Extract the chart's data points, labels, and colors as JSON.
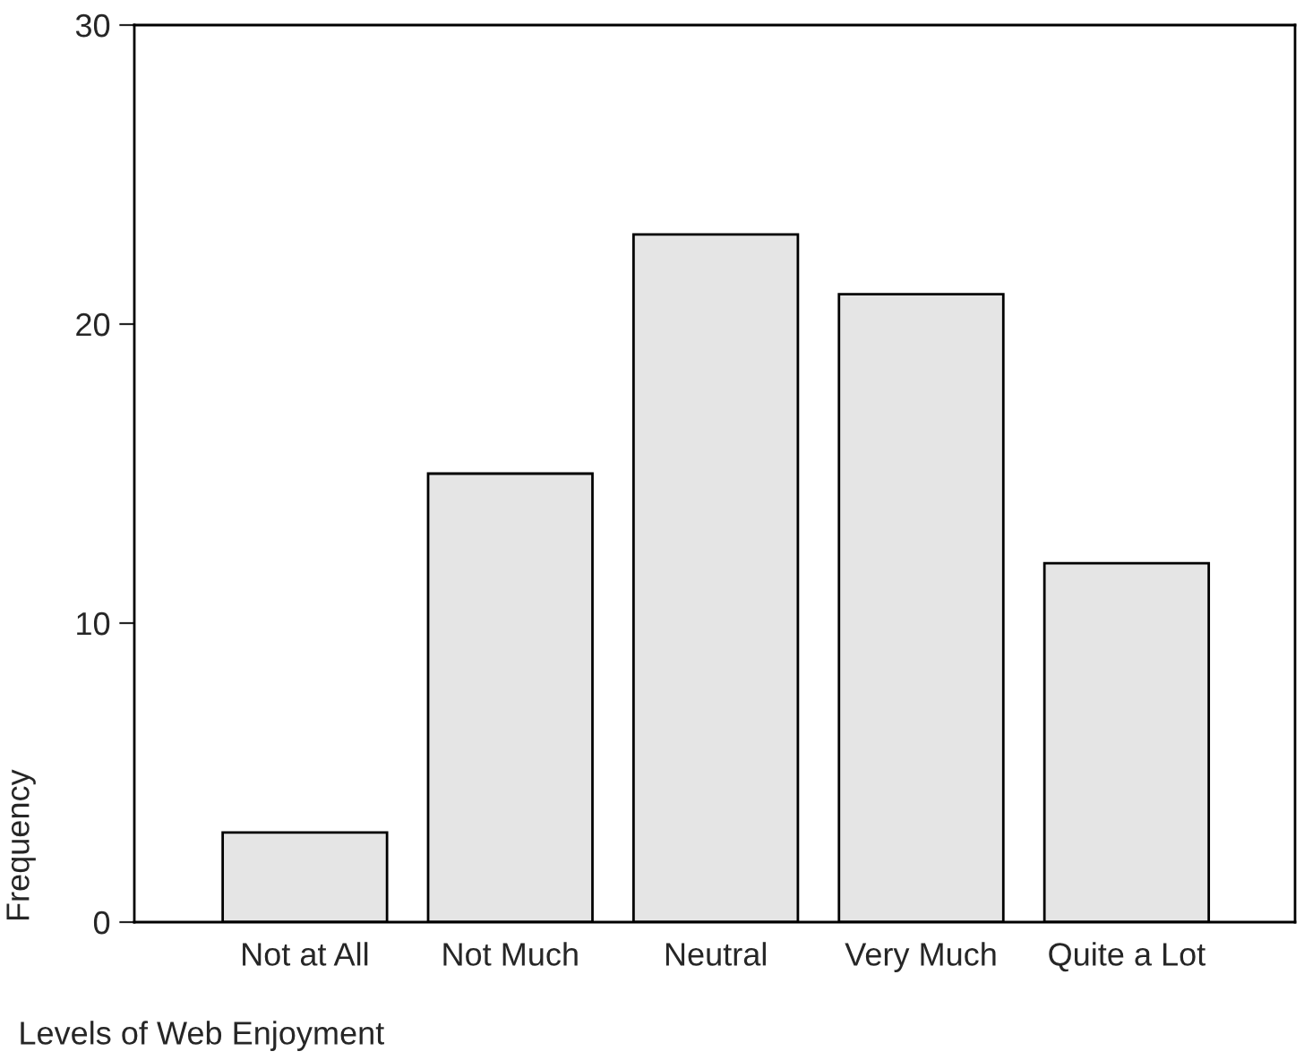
{
  "chart_data": {
    "type": "bar",
    "xlabel": "Levels of Web Enjoyment",
    "ylabel": "Frequency",
    "categories": [
      "Not at All",
      "Not Much",
      "Neutral",
      "Very Much",
      "Quite a Lot"
    ],
    "values": [
      3,
      15,
      23,
      21,
      12
    ],
    "color": "#e5e5e5",
    "ylim": [
      0,
      30
    ],
    "yticks": [
      0,
      10,
      20,
      30
    ],
    "grid": false
  }
}
